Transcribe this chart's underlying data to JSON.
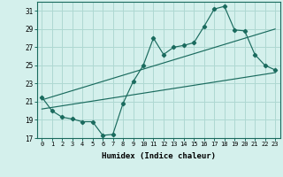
{
  "xlabel": "Humidex (Indice chaleur)",
  "bg_color": "#d4f0ec",
  "grid_color": "#aed8d2",
  "line_color": "#1a6b5e",
  "xlim": [
    -0.5,
    23.5
  ],
  "ylim": [
    17,
    32
  ],
  "yticks": [
    17,
    19,
    21,
    23,
    25,
    27,
    29,
    31
  ],
  "xticks": [
    0,
    1,
    2,
    3,
    4,
    5,
    6,
    7,
    8,
    9,
    10,
    11,
    12,
    13,
    14,
    15,
    16,
    17,
    18,
    19,
    20,
    21,
    22,
    23
  ],
  "main_x": [
    0,
    1,
    2,
    3,
    4,
    5,
    6,
    7,
    8,
    9,
    10,
    11,
    12,
    13,
    14,
    15,
    16,
    17,
    18,
    19,
    20,
    21,
    22,
    23
  ],
  "main_y": [
    21.5,
    20.0,
    19.3,
    19.1,
    18.8,
    18.8,
    17.3,
    17.4,
    20.8,
    23.2,
    25.0,
    28.0,
    26.2,
    27.0,
    27.2,
    27.5,
    29.3,
    31.2,
    31.5,
    28.9,
    28.8,
    26.2,
    25.0,
    24.5
  ],
  "upper_line_x": [
    0,
    23
  ],
  "upper_line_y": [
    21.2,
    29.0
  ],
  "lower_line_x": [
    0,
    23
  ],
  "lower_line_y": [
    20.2,
    24.2
  ]
}
